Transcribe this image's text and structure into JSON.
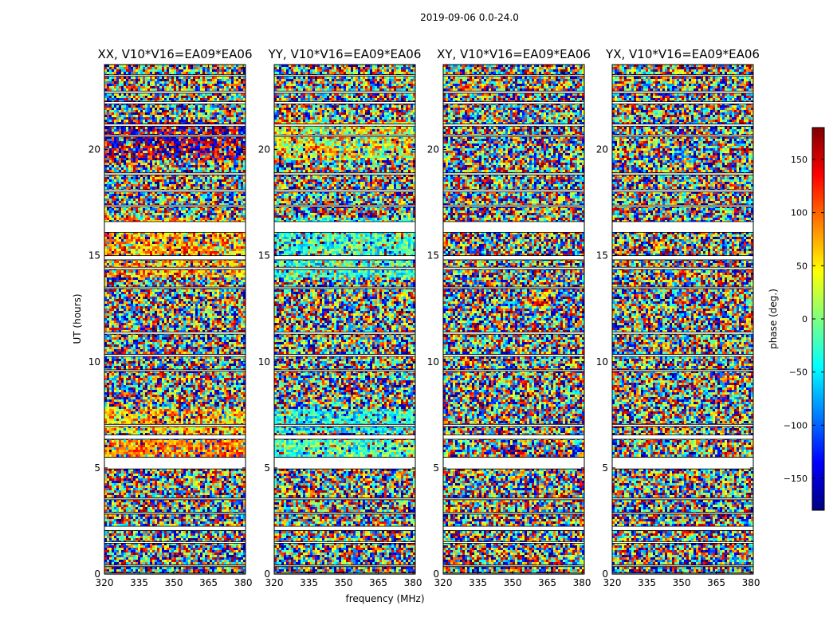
{
  "chart_data": {
    "type": "heatmap",
    "title": "2019-09-06 0.0-24.0",
    "panels": [
      {
        "title": "XX, V10*V16=EA09*EA06",
        "variant": "xx"
      },
      {
        "title": "YY, V10*V16=EA09*EA06",
        "variant": "yy"
      },
      {
        "title": "XY, V10*V16=EA09*EA06",
        "variant": "cross"
      },
      {
        "title": "YX, V10*V16=EA09*EA06",
        "variant": "cross"
      }
    ],
    "xlabel": "frequency (MHz)",
    "ylabel": "UT (hours)",
    "xlim": [
      320,
      381
    ],
    "ylim": [
      0,
      24
    ],
    "xticks": [
      320,
      335,
      350,
      365,
      380
    ],
    "yticks": [
      0,
      5,
      10,
      15,
      20
    ],
    "colorbar": {
      "label": "phase (deg.)",
      "range": [
        -180,
        180
      ],
      "ticks": [
        150,
        100,
        50,
        0,
        -50,
        -100,
        -150
      ],
      "tick_labels": [
        "150",
        "100",
        "50",
        "0",
        "−50",
        "−100",
        "−150"
      ],
      "colormap": "jet",
      "colormap_stops": [
        "#00007f",
        "#0000ff",
        "#007fff",
        "#00ffff",
        "#7fff7f",
        "#ffff00",
        "#ff7f00",
        "#ff0000",
        "#7f0000"
      ]
    },
    "flagged_hours": [
      [
        0.0,
        0.05
      ],
      [
        0.35,
        0.42
      ],
      [
        1.45,
        1.52
      ],
      [
        2.05,
        2.25
      ],
      [
        2.82,
        2.9
      ],
      [
        3.5,
        3.58
      ],
      [
        4.95,
        5.5
      ],
      [
        6.35,
        6.55
      ],
      [
        6.95,
        7.05
      ],
      [
        9.55,
        9.62
      ],
      [
        10.25,
        10.35
      ],
      [
        11.3,
        11.4
      ],
      [
        13.45,
        13.52
      ],
      [
        14.35,
        14.45
      ],
      [
        14.8,
        15.0
      ],
      [
        16.1,
        16.6
      ],
      [
        17.3,
        17.38
      ],
      [
        18.0,
        18.1
      ],
      [
        18.8,
        18.9
      ],
      [
        20.6,
        20.68
      ],
      [
        21.1,
        21.2
      ],
      [
        22.15,
        22.25
      ],
      [
        22.65,
        22.75
      ],
      [
        23.45,
        23.52
      ]
    ]
  }
}
